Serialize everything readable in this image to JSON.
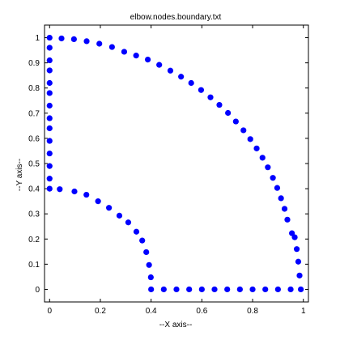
{
  "chart_data": {
    "type": "scatter",
    "title": "elbow.nodes.boundary.txt",
    "xlabel": "--X axis--",
    "ylabel": "--Y axis--",
    "xlim": [
      -0.02,
      1.02
    ],
    "ylim": [
      -0.05,
      1.05
    ],
    "xticks": [
      0,
      0.2,
      0.4,
      0.6,
      0.8,
      1
    ],
    "yticks": [
      0,
      0.1,
      0.2,
      0.3,
      0.4,
      0.5,
      0.6,
      0.7,
      0.8,
      0.9,
      1
    ],
    "xtick_labels": [
      "0",
      "0.2",
      "0.4",
      "0.6",
      "0.8",
      "1"
    ],
    "ytick_labels": [
      "0",
      "0.1",
      "0.2",
      "0.3",
      "0.4",
      "0.5",
      "0.6",
      "0.7",
      "0.8",
      "0.9",
      "1"
    ],
    "grid": false,
    "marker_color": "#0000ff",
    "points": [
      {
        "x": 0.0,
        "y": 1.0
      },
      {
        "x": 0.0,
        "y": 0.96
      },
      {
        "x": 0.0,
        "y": 0.91
      },
      {
        "x": 0.0,
        "y": 0.87
      },
      {
        "x": 0.0,
        "y": 0.82
      },
      {
        "x": 0.0,
        "y": 0.78
      },
      {
        "x": 0.0,
        "y": 0.73
      },
      {
        "x": 0.0,
        "y": 0.68
      },
      {
        "x": 0.0,
        "y": 0.64
      },
      {
        "x": 0.0,
        "y": 0.59
      },
      {
        "x": 0.0,
        "y": 0.54
      },
      {
        "x": 0.0,
        "y": 0.49
      },
      {
        "x": 0.0,
        "y": 0.44
      },
      {
        "x": 0.0,
        "y": 0.4
      },
      {
        "x": 0.047,
        "y": 0.997
      },
      {
        "x": 0.096,
        "y": 0.994
      },
      {
        "x": 0.146,
        "y": 0.986
      },
      {
        "x": 0.196,
        "y": 0.976
      },
      {
        "x": 0.246,
        "y": 0.963
      },
      {
        "x": 0.294,
        "y": 0.944
      },
      {
        "x": 0.341,
        "y": 0.929
      },
      {
        "x": 0.387,
        "y": 0.913
      },
      {
        "x": 0.432,
        "y": 0.892
      },
      {
        "x": 0.476,
        "y": 0.869
      },
      {
        "x": 0.518,
        "y": 0.845
      },
      {
        "x": 0.558,
        "y": 0.82
      },
      {
        "x": 0.597,
        "y": 0.792
      },
      {
        "x": 0.634,
        "y": 0.763
      },
      {
        "x": 0.669,
        "y": 0.733
      },
      {
        "x": 0.703,
        "y": 0.701
      },
      {
        "x": 0.734,
        "y": 0.667
      },
      {
        "x": 0.764,
        "y": 0.632
      },
      {
        "x": 0.791,
        "y": 0.597
      },
      {
        "x": 0.816,
        "y": 0.56
      },
      {
        "x": 0.839,
        "y": 0.523
      },
      {
        "x": 0.86,
        "y": 0.485
      },
      {
        "x": 0.88,
        "y": 0.443
      },
      {
        "x": 0.897,
        "y": 0.403
      },
      {
        "x": 0.912,
        "y": 0.362
      },
      {
        "x": 0.926,
        "y": 0.32
      },
      {
        "x": 0.937,
        "y": 0.277
      },
      {
        "x": 0.955,
        "y": 0.223
      },
      {
        "x": 0.966,
        "y": 0.207
      },
      {
        "x": 0.974,
        "y": 0.16
      },
      {
        "x": 0.98,
        "y": 0.11
      },
      {
        "x": 0.985,
        "y": 0.055
      },
      {
        "x": 0.99,
        "y": 0.0
      },
      {
        "x": 0.04,
        "y": 0.398
      },
      {
        "x": 0.098,
        "y": 0.389
      },
      {
        "x": 0.145,
        "y": 0.376
      },
      {
        "x": 0.191,
        "y": 0.35
      },
      {
        "x": 0.234,
        "y": 0.324
      },
      {
        "x": 0.275,
        "y": 0.293
      },
      {
        "x": 0.31,
        "y": 0.266
      },
      {
        "x": 0.342,
        "y": 0.229
      },
      {
        "x": 0.365,
        "y": 0.194
      },
      {
        "x": 0.381,
        "y": 0.148
      },
      {
        "x": 0.392,
        "y": 0.097
      },
      {
        "x": 0.399,
        "y": 0.048
      },
      {
        "x": 0.4,
        "y": 0.0
      },
      {
        "x": 0.45,
        "y": 0.0
      },
      {
        "x": 0.5,
        "y": 0.0
      },
      {
        "x": 0.55,
        "y": 0.0
      },
      {
        "x": 0.6,
        "y": 0.0
      },
      {
        "x": 0.65,
        "y": 0.0
      },
      {
        "x": 0.7,
        "y": 0.0
      },
      {
        "x": 0.75,
        "y": 0.0
      },
      {
        "x": 0.8,
        "y": 0.0
      },
      {
        "x": 0.85,
        "y": 0.0
      },
      {
        "x": 0.9,
        "y": 0.0
      },
      {
        "x": 0.95,
        "y": 0.0
      }
    ]
  }
}
